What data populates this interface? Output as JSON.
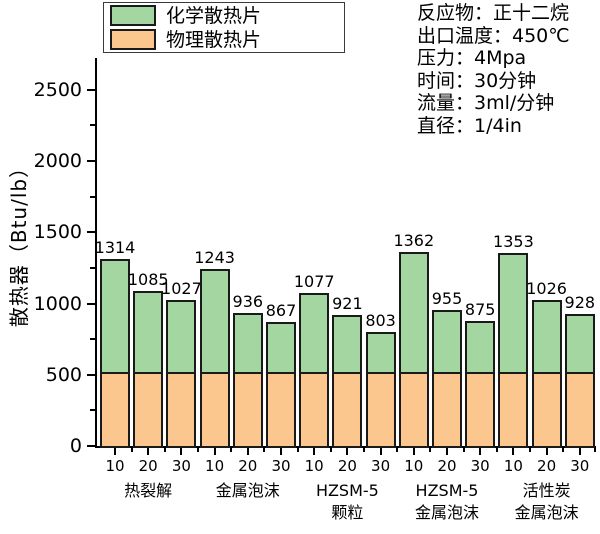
{
  "legend": {
    "items": [
      {
        "label": "化学散热片",
        "color": "#a4d6a1"
      },
      {
        "label": "物理散热片",
        "color": "#fbc78f"
      }
    ]
  },
  "conditions": {
    "lines": [
      "反应物：正十二烷",
      "出口温度：450℃",
      "压力：4Mpa",
      "时间：30分钟",
      "流量：3ml/分钟",
      "直径：1/4in"
    ]
  },
  "chart_data": {
    "type": "bar",
    "stacked": true,
    "title": "",
    "ylabel": "散热器（Btu/lb）",
    "xlabel": "",
    "ylim": [
      0,
      2750
    ],
    "grid": false,
    "legend_position": "top-left",
    "y_major_ticks": [
      0,
      500,
      1000,
      1500,
      2000,
      2500
    ],
    "y_minor_ticks": [
      250,
      750,
      1250,
      1750,
      2250
    ],
    "x_tick_labels": [
      "10",
      "20",
      "30"
    ],
    "group_labels": [
      [
        "热裂解"
      ],
      [
        "金属泡沫"
      ],
      [
        "HZSM-5",
        "颗粒"
      ],
      [
        "HZSM-5",
        "金属泡沫"
      ],
      [
        "活性炭",
        "金属泡沫"
      ]
    ],
    "totals": [
      1314,
      1085,
      1027,
      1243,
      936,
      867,
      1077,
      921,
      803,
      1362,
      955,
      875,
      1353,
      1026,
      928
    ],
    "bar_value_labels": [
      "1314",
      "1085",
      "1027",
      "1243",
      "936",
      "867",
      "1077",
      "921",
      "803",
      "1362",
      "955",
      "875",
      "1353",
      "1026",
      "928"
    ],
    "series": [
      {
        "name": "化学散热片",
        "color": "#a4d6a1",
        "values": [
          794,
          565,
          507,
          723,
          416,
          347,
          557,
          401,
          283,
          842,
          435,
          355,
          833,
          506,
          408
        ]
      },
      {
        "name": "物理散热片",
        "color": "#fbc78f",
        "values": [
          520,
          520,
          520,
          520,
          520,
          520,
          520,
          520,
          520,
          520,
          520,
          520,
          520,
          520,
          520
        ]
      }
    ],
    "colors": {
      "bar_border": "#1a1a1a",
      "axis": "#000000"
    }
  }
}
